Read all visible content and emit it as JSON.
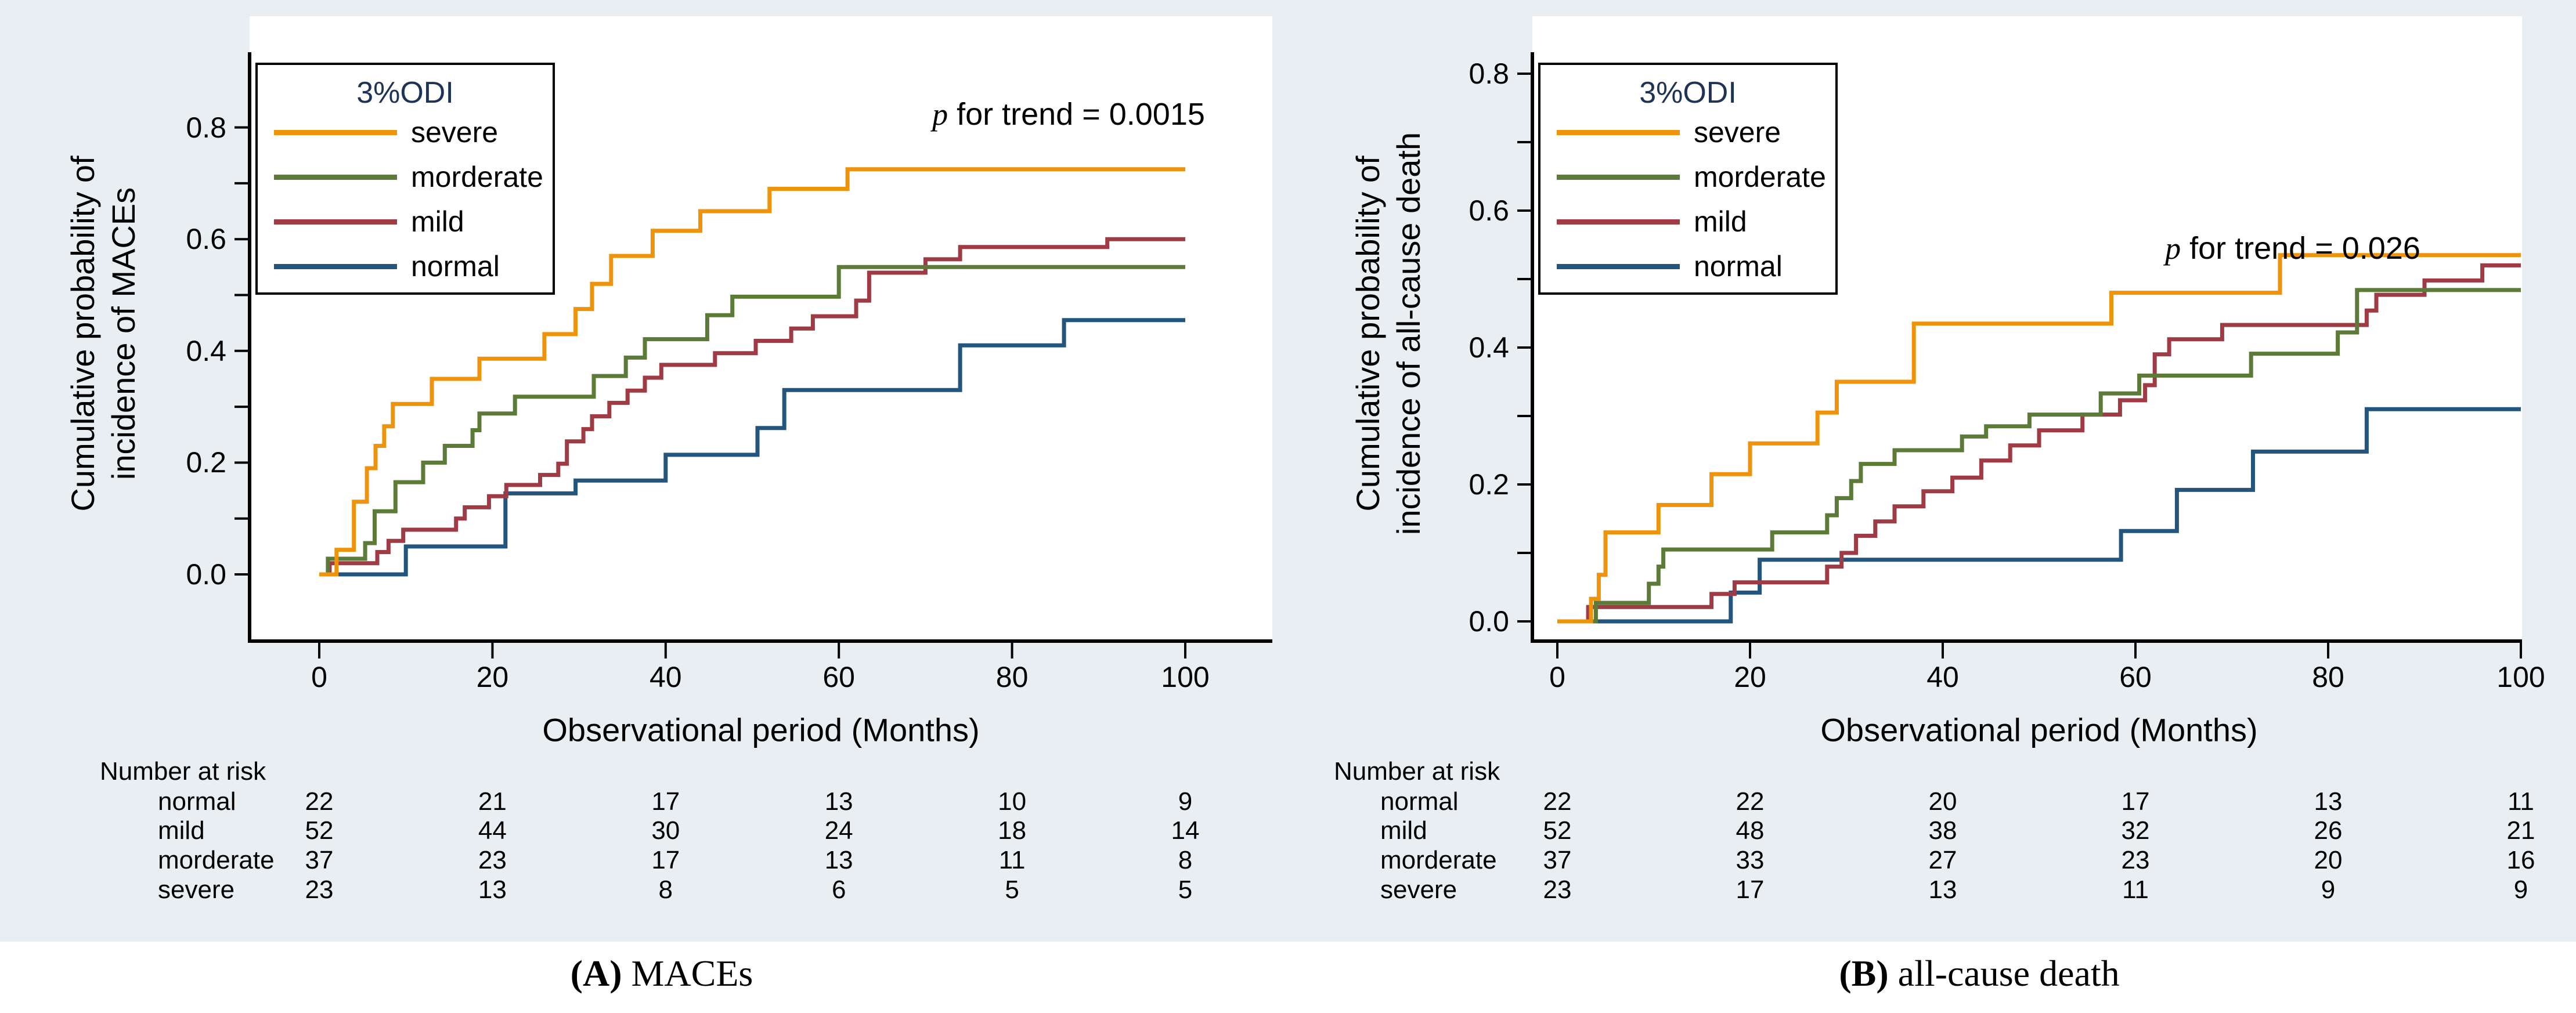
{
  "figure": {
    "background_color": "#e8eef1",
    "caption_strip_color": "#ffffff",
    "axis_color": "#000000",
    "legend_title_color": "#1F3356"
  },
  "chart_data": [
    {
      "id": "A",
      "type": "line",
      "subtype": "kaplan-meier-step",
      "caption_prefix": "(A)",
      "caption_suffix": " MACEs",
      "ylabel_lines": [
        "Cumulative probability of",
        "incidence of MACEs"
      ],
      "xlabel": "Observational period (Months)",
      "annotation_italic": "p",
      "annotation_rest": " for trend = 0.0015",
      "legend": {
        "title": "3%ODI",
        "entries": [
          {
            "label": "severe",
            "color": "#ED940C"
          },
          {
            "label": "morderate",
            "color": "#5C7A38"
          },
          {
            "label": "mild",
            "color": "#9E3B44"
          },
          {
            "label": "normal",
            "color": "#24557C"
          }
        ]
      },
      "xlim": [
        0,
        100
      ],
      "ylim": [
        0,
        0.8
      ],
      "x_tick_labels": [
        "0",
        "20",
        "40",
        "60",
        "80",
        "100"
      ],
      "y_tick_labels": [
        "0.0",
        "0.2",
        "0.4",
        "0.6",
        "0.8"
      ],
      "grid": false,
      "legend_position": "upper-left",
      "series": [
        {
          "name": "severe",
          "color": "#ED940C",
          "steps": [
            [
              0,
              0
            ],
            [
              2,
              0.044
            ],
            [
              4,
              0.13
            ],
            [
              5.5,
              0.19
            ],
            [
              6.5,
              0.23
            ],
            [
              7.5,
              0.265
            ],
            [
              8.5,
              0.305
            ],
            [
              13,
              0.35
            ],
            [
              18.5,
              0.386
            ],
            [
              26,
              0.43
            ],
            [
              29.6,
              0.475
            ],
            [
              31.5,
              0.52
            ],
            [
              33.7,
              0.57
            ],
            [
              38.5,
              0.615
            ],
            [
              44,
              0.65
            ],
            [
              52,
              0.69
            ],
            [
              61,
              0.725
            ]
          ]
        },
        {
          "name": "morderate",
          "color": "#5C7A38",
          "steps": [
            [
              0,
              0
            ],
            [
              1,
              0.028
            ],
            [
              5.3,
              0.056
            ],
            [
              6.4,
              0.113
            ],
            [
              8.8,
              0.165
            ],
            [
              12,
              0.2
            ],
            [
              14.5,
              0.23
            ],
            [
              17.7,
              0.258
            ],
            [
              18.5,
              0.288
            ],
            [
              22.6,
              0.318
            ],
            [
              31.7,
              0.355
            ],
            [
              35.4,
              0.388
            ],
            [
              37.6,
              0.421
            ],
            [
              44.8,
              0.464
            ],
            [
              47.7,
              0.497
            ],
            [
              60,
              0.55
            ]
          ]
        },
        {
          "name": "mild",
          "color": "#9E3B44",
          "steps": [
            [
              0,
              0
            ],
            [
              1.2,
              0.02
            ],
            [
              6.7,
              0.04
            ],
            [
              8,
              0.06
            ],
            [
              9.7,
              0.08
            ],
            [
              15.8,
              0.1
            ],
            [
              16.8,
              0.12
            ],
            [
              19.6,
              0.14
            ],
            [
              21.6,
              0.16
            ],
            [
              25.5,
              0.178
            ],
            [
              27.6,
              0.198
            ],
            [
              28.6,
              0.238
            ],
            [
              30.5,
              0.26
            ],
            [
              31.5,
              0.283
            ],
            [
              33.5,
              0.307
            ],
            [
              35.6,
              0.329
            ],
            [
              37.6,
              0.352
            ],
            [
              39.5,
              0.375
            ],
            [
              45.7,
              0.396
            ],
            [
              50.4,
              0.418
            ],
            [
              54.5,
              0.44
            ],
            [
              57,
              0.462
            ],
            [
              62,
              0.49
            ],
            [
              63.5,
              0.54
            ],
            [
              70,
              0.564
            ],
            [
              74,
              0.586
            ],
            [
              91,
              0.6
            ]
          ]
        },
        {
          "name": "normal",
          "color": "#24557C",
          "steps": [
            [
              0,
              0
            ],
            [
              10,
              0.05
            ],
            [
              21.5,
              0.145
            ],
            [
              29.6,
              0.168
            ],
            [
              40,
              0.214
            ],
            [
              50.6,
              0.262
            ],
            [
              53.7,
              0.33
            ],
            [
              74,
              0.41
            ],
            [
              86,
              0.455
            ]
          ]
        }
      ],
      "number_at_risk": {
        "label": "Number at risk",
        "rows": [
          {
            "name": "normal",
            "values": [
              "22",
              "21",
              "17",
              "13",
              "10",
              "9"
            ]
          },
          {
            "name": "mild",
            "values": [
              "52",
              "44",
              "30",
              "24",
              "18",
              "14"
            ]
          },
          {
            "name": "morderate",
            "values": [
              "37",
              "23",
              "17",
              "13",
              "11",
              "8"
            ]
          },
          {
            "name": "severe",
            "values": [
              "23",
              "13",
              "8",
              "6",
              "5",
              "5"
            ]
          }
        ]
      }
    },
    {
      "id": "B",
      "type": "line",
      "subtype": "kaplan-meier-step",
      "caption_prefix": "(B)",
      "caption_suffix": " all-cause death",
      "ylabel_lines": [
        "Cumulative probability of",
        "incidence of all-cause death"
      ],
      "xlabel": "Observational period (Months)",
      "annotation_italic": "p",
      "annotation_rest": " for trend = 0.026",
      "legend": {
        "title": "3%ODI",
        "entries": [
          {
            "label": "severe",
            "color": "#ED940C"
          },
          {
            "label": "morderate",
            "color": "#5C7A38"
          },
          {
            "label": "mild",
            "color": "#9E3B44"
          },
          {
            "label": "normal",
            "color": "#24557C"
          }
        ]
      },
      "xlim": [
        0,
        100
      ],
      "ylim": [
        0,
        0.8
      ],
      "x_tick_labels": [
        "0",
        "20",
        "40",
        "60",
        "80",
        "100"
      ],
      "y_tick_labels": [
        "0.0",
        "0.2",
        "0.4",
        "0.6",
        "0.8"
      ],
      "grid": false,
      "legend_position": "upper-left",
      "series": [
        {
          "name": "severe",
          "color": "#ED940C",
          "steps": [
            [
              0,
              0
            ],
            [
              3.5,
              0.033
            ],
            [
              4.3,
              0.068
            ],
            [
              5,
              0.13
            ],
            [
              10.5,
              0.17
            ],
            [
              16,
              0.215
            ],
            [
              20,
              0.26
            ],
            [
              27,
              0.305
            ],
            [
              29,
              0.35
            ],
            [
              37,
              0.435
            ],
            [
              57.5,
              0.48
            ],
            [
              75,
              0.535
            ]
          ]
        },
        {
          "name": "morderate",
          "color": "#5C7A38",
          "steps": [
            [
              0,
              0
            ],
            [
              4,
              0.027
            ],
            [
              9.5,
              0.055
            ],
            [
              10.5,
              0.08
            ],
            [
              11,
              0.105
            ],
            [
              22.3,
              0.13
            ],
            [
              28,
              0.155
            ],
            [
              29,
              0.18
            ],
            [
              30.5,
              0.205
            ],
            [
              31.5,
              0.23
            ],
            [
              35,
              0.25
            ],
            [
              42,
              0.27
            ],
            [
              44.5,
              0.285
            ],
            [
              49,
              0.302
            ],
            [
              56.4,
              0.333
            ],
            [
              60.4,
              0.359
            ],
            [
              72,
              0.391
            ],
            [
              81,
              0.422
            ],
            [
              83,
              0.484
            ]
          ]
        },
        {
          "name": "mild",
          "color": "#9E3B44",
          "steps": [
            [
              0,
              0
            ],
            [
              3.2,
              0.021
            ],
            [
              16,
              0.04
            ],
            [
              18.4,
              0.057
            ],
            [
              28,
              0.08
            ],
            [
              29.5,
              0.1
            ],
            [
              31,
              0.125
            ],
            [
              33,
              0.146
            ],
            [
              35,
              0.168
            ],
            [
              38,
              0.19
            ],
            [
              41,
              0.21
            ],
            [
              44,
              0.235
            ],
            [
              47,
              0.257
            ],
            [
              50,
              0.279
            ],
            [
              54.5,
              0.302
            ],
            [
              58.4,
              0.323
            ],
            [
              61,
              0.345
            ],
            [
              62,
              0.39
            ],
            [
              63.5,
              0.412
            ],
            [
              69,
              0.433
            ],
            [
              84,
              0.454
            ],
            [
              85,
              0.477
            ],
            [
              90,
              0.498
            ],
            [
              96,
              0.52
            ]
          ]
        },
        {
          "name": "normal",
          "color": "#24557C",
          "steps": [
            [
              0,
              0
            ],
            [
              18,
              0.042
            ],
            [
              21,
              0.09
            ],
            [
              58.5,
              0.132
            ],
            [
              64.3,
              0.192
            ],
            [
              72.2,
              0.248
            ],
            [
              84,
              0.31
            ]
          ]
        }
      ],
      "number_at_risk": {
        "label": "Number at risk",
        "rows": [
          {
            "name": "normal",
            "values": [
              "22",
              "22",
              "20",
              "17",
              "13",
              "11"
            ]
          },
          {
            "name": "mild",
            "values": [
              "52",
              "48",
              "38",
              "32",
              "26",
              "21"
            ]
          },
          {
            "name": "morderate",
            "values": [
              "37",
              "33",
              "27",
              "23",
              "20",
              "16"
            ]
          },
          {
            "name": "severe",
            "values": [
              "23",
              "17",
              "13",
              "11",
              "9",
              "9"
            ]
          }
        ]
      }
    }
  ]
}
